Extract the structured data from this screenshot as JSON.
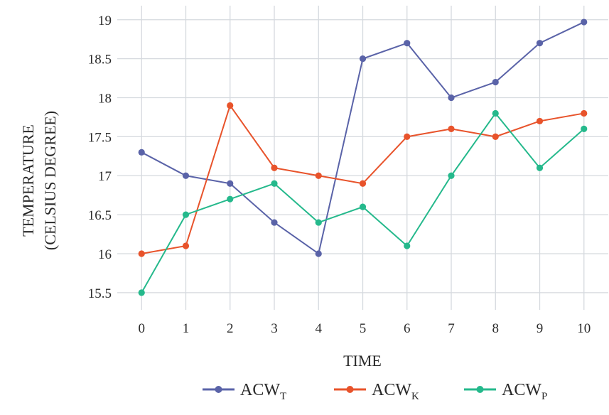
{
  "chart_data": {
    "type": "line",
    "title": "",
    "xlabel": "TIME",
    "ylabel": [
      "TEMPERATURE",
      "(CELSIUS DEGREE)"
    ],
    "x": [
      0,
      1,
      2,
      3,
      4,
      5,
      6,
      7,
      8,
      9,
      10
    ],
    "xticks": [
      "0",
      "1",
      "2",
      "3",
      "4",
      "5",
      "6",
      "7",
      "8",
      "9",
      "10"
    ],
    "xlim": [
      -0.55,
      10.55
    ],
    "yticks": [
      "15.5",
      "16",
      "16.5",
      "17",
      "17.5",
      "18",
      "18.5",
      "19"
    ],
    "ytick_values": [
      15.5,
      16,
      16.5,
      17,
      17.5,
      18,
      18.5,
      19
    ],
    "ylim": [
      15.28,
      19.18
    ],
    "grid": true,
    "legend_position": "bottom-center",
    "series": [
      {
        "name": "ACW",
        "sub": "T",
        "color": "#5a63a8",
        "values": [
          17.3,
          17.0,
          16.9,
          16.4,
          16.0,
          18.5,
          18.7,
          18.0,
          18.2,
          18.7,
          18.97
        ]
      },
      {
        "name": "ACW",
        "sub": "K",
        "color": "#e8532b",
        "values": [
          16.0,
          16.1,
          17.9,
          17.1,
          17.0,
          16.9,
          17.5,
          17.6,
          17.5,
          17.7,
          17.8
        ]
      },
      {
        "name": "ACW",
        "sub": "P",
        "color": "#25b98c",
        "values": [
          15.5,
          16.5,
          16.7,
          16.9,
          16.4,
          16.6,
          16.1,
          17.0,
          17.8,
          17.1,
          17.6
        ]
      }
    ]
  }
}
